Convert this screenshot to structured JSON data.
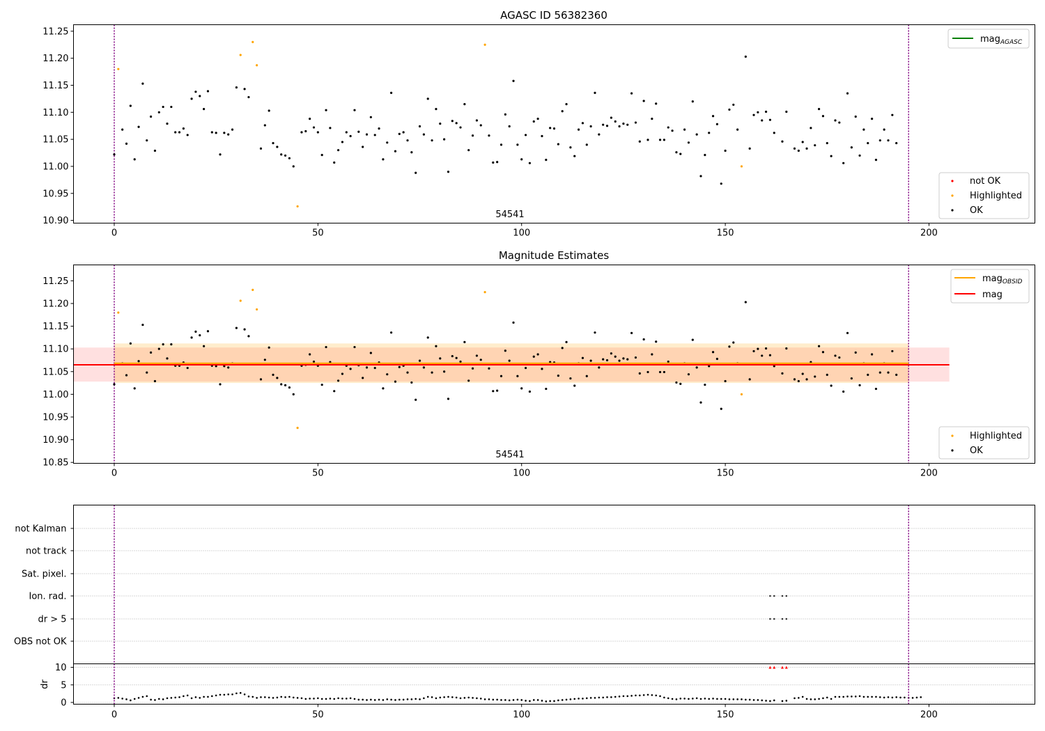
{
  "chart_data": [
    {
      "type": "scatter",
      "title": "AGASC ID 56382360",
      "xlim": [
        -10,
        226
      ],
      "ylim": [
        10.895,
        11.262
      ],
      "yticks": [
        "10.90",
        "10.95",
        "11.00",
        "11.05",
        "11.10",
        "11.15",
        "11.20",
        "11.25"
      ],
      "xticks": [
        "0",
        "50",
        "100",
        "150",
        "200"
      ],
      "vlines": [
        0,
        195
      ],
      "obsid_label": "54541",
      "legend_lines": [
        {
          "label": "mag",
          "subscript": "AGASC",
          "color": "#008000"
        }
      ],
      "legend_points": [
        {
          "label": "not OK",
          "color": "#ff0000"
        },
        {
          "label": "Highlighted",
          "color": "#ffa500"
        },
        {
          "label": "OK",
          "color": "#000000"
        }
      ]
    },
    {
      "type": "scatter",
      "title": "Magnitude Estimates",
      "xlim": [
        -10,
        226
      ],
      "ylim": [
        10.848,
        11.285
      ],
      "yticks": [
        "10.85",
        "10.90",
        "10.95",
        "11.00",
        "11.05",
        "11.10",
        "11.15",
        "11.20",
        "11.25"
      ],
      "xticks": [
        "0",
        "50",
        "100",
        "150",
        "200"
      ],
      "vlines": [
        0,
        195
      ],
      "obsid_label": "54541",
      "mag": {
        "value": 11.065,
        "band": [
          11.028,
          11.103
        ],
        "x_range": [
          -10,
          205
        ],
        "color": "#ff0000"
      },
      "mag_obsid": {
        "value": 11.068,
        "band": [
          11.025,
          11.112
        ],
        "x_range": [
          0,
          195
        ],
        "color": "#ffa500"
      },
      "legend_lines": [
        {
          "label": "mag",
          "subscript": "OBSID",
          "color": "#ffa500"
        },
        {
          "label": "mag",
          "subscript": "",
          "color": "#ff0000"
        }
      ],
      "legend_points": [
        {
          "label": "Highlighted",
          "color": "#ffa500"
        },
        {
          "label": "OK",
          "color": "#000000"
        }
      ]
    },
    {
      "type": "scatter",
      "flag_labels": [
        "not Kalman",
        "not track",
        "Sat. pixel.",
        "Ion. rad.",
        "dr > 5",
        "OBS not OK"
      ],
      "flags": {
        "Ion. rad.": [
          161,
          162,
          164,
          165
        ],
        "dr > 5": [
          161,
          162,
          164,
          165
        ]
      },
      "dr_ylabel": "dr",
      "dr_yticks": [
        "0",
        "5",
        "10"
      ],
      "dr_ylim": [
        -0.5,
        11
      ],
      "xlim": [
        -10,
        226
      ],
      "xticks": [
        "0",
        "50",
        "100",
        "150",
        "200"
      ],
      "vlines": [
        0,
        195
      ],
      "dr_over_limit": [
        161,
        162,
        164,
        165
      ]
    }
  ],
  "series": {
    "mag_est": [
      11.022,
      11.18,
      11.068,
      11.042,
      11.112,
      11.013,
      11.073,
      11.153,
      11.048,
      11.092,
      11.029,
      11.1,
      11.11,
      11.079,
      11.11,
      11.063,
      11.063,
      11.07,
      11.058,
      11.125,
      11.138,
      11.13,
      11.106,
      11.139,
      11.063,
      11.062,
      11.022,
      11.062,
      11.059,
      11.068,
      11.146,
      11.206,
      11.143,
      11.128,
      11.23,
      11.187,
      11.033,
      11.076,
      11.103,
      11.043,
      11.036,
      11.022,
      11.02,
      11.015,
      11.0,
      10.926,
      11.063,
      11.065,
      11.088,
      11.072,
      11.063,
      11.021,
      11.104,
      11.071,
      11.007,
      11.03,
      11.045,
      11.063,
      11.056,
      11.104,
      11.064,
      11.036,
      11.059,
      11.091,
      11.058,
      11.07,
      11.013,
      11.044,
      11.136,
      11.028,
      11.06,
      11.063,
      11.048,
      11.026,
      10.988,
      11.074,
      11.059,
      11.125,
      11.048,
      11.106,
      11.079,
      11.05,
      10.99,
      11.084,
      11.08,
      11.072,
      11.115,
      11.03,
      11.057,
      11.085,
      11.076,
      11.225,
      11.057,
      11.007,
      11.008,
      11.04,
      11.096,
      11.074,
      11.158,
      11.04,
      11.013,
      11.058,
      11.006,
      11.083,
      11.088,
      11.056,
      11.012,
      11.071,
      11.07,
      11.041,
      11.102,
      11.115,
      11.035,
      11.019,
      11.068,
      11.08,
      11.04,
      11.074,
      11.136,
      11.059,
      11.077,
      11.075,
      11.09,
      11.083,
      11.074,
      11.079,
      11.077,
      11.135,
      11.081,
      11.046,
      11.121,
      11.049,
      11.088,
      11.116,
      11.049,
      11.049,
      11.072,
      11.066,
      11.026,
      11.023,
      11.068,
      11.044,
      11.12,
      11.059,
      10.982,
      11.021,
      11.062,
      11.093,
      11.078,
      10.968,
      11.029,
      11.105,
      11.114,
      11.068,
      11.0,
      11.203,
      11.033,
      11.095,
      11.1,
      11.085,
      11.101,
      11.086,
      11.062,
      11.052,
      11.046,
      11.101,
      11.073,
      11.033,
      11.029,
      11.045,
      11.033,
      11.071,
      11.039,
      11.106,
      11.093,
      11.043,
      11.019,
      11.085,
      11.081,
      11.006,
      11.135,
      11.035,
      11.092,
      11.02,
      11.068,
      11.043,
      11.088,
      11.012,
      11.048,
      11.068,
      11.048,
      11.095,
      11.043
    ],
    "highlighted_indices": [
      1,
      31,
      34,
      35,
      45,
      91,
      154
    ],
    "gap_indices": [
      163,
      166
    ],
    "dr": [
      1.2,
      1.3,
      1.1,
      0.9,
      0.6,
      1.0,
      1.3,
      1.6,
      1.8,
      0.8,
      0.7,
      1.0,
      0.9,
      1.2,
      1.3,
      1.4,
      1.5,
      1.8,
      2.0,
      1.2,
      1.5,
      1.3,
      1.6,
      1.6,
      1.8,
      2.0,
      2.2,
      2.2,
      2.3,
      2.3,
      2.6,
      2.7,
      2.3,
      1.7,
      1.6,
      1.3,
      1.5,
      1.5,
      1.4,
      1.3,
      1.4,
      1.6,
      1.5,
      1.6,
      1.4,
      1.3,
      1.2,
      1.0,
      1.1,
      1.1,
      1.2,
      1.0,
      1.0,
      1.1,
      1.0,
      1.2,
      1.1,
      1.1,
      1.2,
      1.0,
      0.8,
      0.8,
      0.7,
      0.8,
      0.7,
      0.8,
      0.7,
      0.9,
      0.8,
      0.7,
      0.8,
      0.8,
      0.9,
      0.9,
      1.0,
      0.9,
      1.2,
      1.6,
      1.5,
      1.2,
      1.4,
      1.5,
      1.6,
      1.5,
      1.4,
      1.2,
      1.3,
      1.4,
      1.3,
      1.2,
      1.1,
      0.9,
      0.9,
      0.8,
      0.8,
      0.7,
      0.7,
      0.6,
      0.7,
      0.8,
      0.7,
      0.5,
      0.4,
      0.7,
      0.7,
      0.5,
      0.3,
      0.4,
      0.4,
      0.6,
      0.7,
      0.8,
      0.9,
      1.0,
      1.1,
      1.1,
      1.2,
      1.3,
      1.3,
      1.4,
      1.4,
      1.5,
      1.5,
      1.6,
      1.7,
      1.8,
      1.8,
      1.9,
      2.0,
      2.0,
      2.1,
      2.2,
      2.1,
      2.0,
      1.8,
      1.4,
      1.2,
      1.0,
      0.9,
      1.1,
      1.1,
      1.0,
      1.1,
      1.2,
      1.0,
      1.1,
      1.0,
      1.1,
      1.0,
      1.0,
      1.0,
      0.9,
      0.9,
      0.9,
      0.9,
      0.8,
      0.8,
      0.7,
      0.7,
      0.6,
      0.5,
      0.4,
      0.6,
      0.5,
      0.4,
      0.5,
      1.1,
      1.2,
      1.3,
      1.6,
      1.0,
      0.9,
      0.9,
      1.0,
      1.2,
      1.4,
      1.0,
      1.6,
      1.6,
      1.6,
      1.7,
      1.7,
      1.7,
      1.8,
      1.6,
      1.6,
      1.6,
      1.6,
      1.5,
      1.4,
      1.5,
      1.4,
      1.5,
      1.4,
      1.4,
      1.3,
      1.3,
      1.4,
      1.5
    ]
  }
}
